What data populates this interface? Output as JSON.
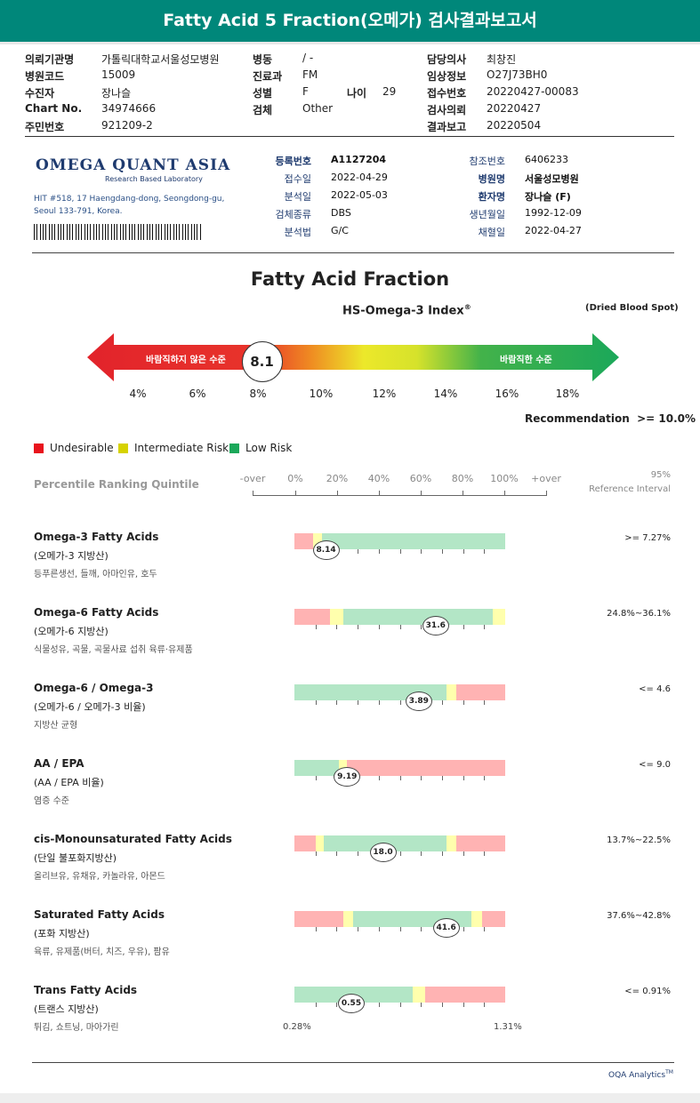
{
  "title": "Fatty Acid 5 Fraction(오메가) 검사결과보고서",
  "header": {
    "col1": [
      {
        "label": "의뢰기관명",
        "value": "가톨릭대학교서울성모병원"
      },
      {
        "label": "병원코드",
        "value": "15009"
      },
      {
        "label": "수진자",
        "value": "장나슬"
      },
      {
        "label": "Chart No.",
        "value": "34974666"
      },
      {
        "label": "주민번호",
        "value": "921209-2"
      }
    ],
    "col2": [
      {
        "label": "병동",
        "value": "/ -"
      },
      {
        "label": "진료과",
        "value": "FM"
      },
      {
        "label": "성별",
        "value": "F"
      },
      {
        "label": "검체",
        "value": "Other"
      }
    ],
    "age_label": "나이",
    "age_value": "29",
    "col3": [
      {
        "label": "담당의사",
        "value": "최창진"
      },
      {
        "label": "임상정보",
        "value": "O27J73BH0"
      },
      {
        "label": "접수번호",
        "value": "20220427-00083"
      },
      {
        "label": "검사의뢰",
        "value": "20220427"
      },
      {
        "label": "결과보고",
        "value": "20220504"
      }
    ]
  },
  "lab": {
    "logo_text": "OMEGA QUANT ASIA",
    "logo_sub": "Research Based Laboratory",
    "address1": "HIT #518, 17 Haengdang-dong, Seongdong-gu,",
    "address2": "Seoul 133-791, Korea.",
    "left_fields": [
      {
        "label": "등록번호",
        "value": "A1127204",
        "bold": true
      },
      {
        "label": "접수일",
        "value": "2022-04-29"
      },
      {
        "label": "분석일",
        "value": "2022-05-03"
      },
      {
        "label": "검체종류",
        "value": "DBS"
      },
      {
        "label": "분석법",
        "value": "G/C"
      }
    ],
    "right_fields": [
      {
        "label": "참조번호",
        "value": "6406233"
      },
      {
        "label": "병원명",
        "value": "서울성모병원",
        "bold": true
      },
      {
        "label": "환자명",
        "value": "장나슬 (F)",
        "bold": true
      },
      {
        "label": "생년월일",
        "value": "1992-12-09"
      },
      {
        "label": "채혈일",
        "value": "2022-04-27"
      }
    ]
  },
  "section_title": "Fatty Acid Fraction",
  "index_title": "HS-Omega-3 Index",
  "index_sup": "®",
  "sample_type": "(Dried Blood Spot)",
  "arrow_left_text": "바람직하지 않은 수준",
  "arrow_right_text": "바람직한 수준",
  "index_value": 8.1,
  "index_value_text": "8.1",
  "index_scale": [
    "4%",
    "6%",
    "8%",
    "10%",
    "12%",
    "14%",
    "16%",
    "18%"
  ],
  "recommendation": "Recommendation  >= 10.0%",
  "legend": [
    {
      "label": "Undesirable",
      "color": "#e8131c"
    },
    {
      "label": "Intermediate Risk",
      "color": "#d6d200"
    },
    {
      "label": "Low Risk",
      "color": "#1ba85a"
    }
  ],
  "quintile_label": "Percentile Ranking Quintile",
  "quintile_ticks": [
    "-over",
    "0%",
    "20%",
    "40%",
    "60%",
    "80%",
    "100%",
    "+over"
  ],
  "ref_header1": "95%",
  "ref_header2": "Reference Interval",
  "rows": [
    {
      "title": "Omega-3 Fatty Acids",
      "sub": "(오메가-3 지방산)",
      "note": "등푸른생선, 들깨, 아마인유, 호두",
      "value": "8.14",
      "pos": 0.15,
      "segments": [
        {
          "c": "red",
          "w": 0.09
        },
        {
          "c": "yellow",
          "w": 0.04
        },
        {
          "c": "green",
          "w": 0.87
        }
      ],
      "ref": ">= 7.27%"
    },
    {
      "title": "Omega-6 Fatty Acids",
      "sub": "(오메가-6 지방산)",
      "note": "식물성유, 곡물, 곡물사료 섭취 육류·유제품",
      "value": "31.6",
      "pos": 0.67,
      "segments": [
        {
          "c": "red",
          "w": 0.17
        },
        {
          "c": "yellow",
          "w": 0.06
        },
        {
          "c": "green",
          "w": 0.71
        },
        {
          "c": "yellow",
          "w": 0.06
        }
      ],
      "ref": "24.8%~36.1%"
    },
    {
      "title": "Omega-6 / Omega-3",
      "sub": "(오메가-6 / 오메가-3 비율)",
      "note": "지방산 균형",
      "value": "3.89",
      "pos": 0.59,
      "segments": [
        {
          "c": "green",
          "w": 0.72
        },
        {
          "c": "yellow",
          "w": 0.05
        },
        {
          "c": "red",
          "w": 0.23
        }
      ],
      "ref": "<= 4.6"
    },
    {
      "title": "AA / EPA",
      "sub": "(AA / EPA 비율)",
      "note": "염증 수준",
      "value": "9.19",
      "pos": 0.25,
      "segments": [
        {
          "c": "green",
          "w": 0.21
        },
        {
          "c": "yellow",
          "w": 0.04
        },
        {
          "c": "red",
          "w": 0.75
        }
      ],
      "ref": "<= 9.0"
    },
    {
      "title": "cis-Monounsaturated Fatty Acids",
      "sub": "(단일 불포화지방산)",
      "note": "올리브유, 유채유, 카놀라유, 아몬드",
      "value": "18.0",
      "pos": 0.42,
      "segments": [
        {
          "c": "red",
          "w": 0.1
        },
        {
          "c": "yellow",
          "w": 0.04
        },
        {
          "c": "green",
          "w": 0.58
        },
        {
          "c": "yellow",
          "w": 0.05
        },
        {
          "c": "red",
          "w": 0.23
        }
      ],
      "ref": "13.7%~22.5%"
    },
    {
      "title": "Saturated Fatty Acids",
      "sub": "(포화 지방산)",
      "note": "육류, 유제품(버터, 치즈, 우유), 팜유",
      "value": "41.6",
      "pos": 0.72,
      "segments": [
        {
          "c": "red",
          "w": 0.23
        },
        {
          "c": "yellow",
          "w": 0.05
        },
        {
          "c": "green",
          "w": 0.56
        },
        {
          "c": "yellow",
          "w": 0.05
        },
        {
          "c": "red",
          "w": 0.11
        }
      ],
      "ref": "37.6%~42.8%"
    },
    {
      "title": "Trans Fatty Acids",
      "sub": "(트랜스 지방산)",
      "note": "튀김, 쇼트닝, 마아가린",
      "value": "0.55",
      "pos": 0.27,
      "segments": [
        {
          "c": "green",
          "w": 0.56
        },
        {
          "c": "yellow",
          "w": 0.06
        },
        {
          "c": "red",
          "w": 0.38
        }
      ],
      "ref": "<= 0.91%"
    }
  ],
  "trans_min": "0.28%",
  "trans_max": "1.31%",
  "footer": "OQA Analytics",
  "footer_sup": "TM"
}
